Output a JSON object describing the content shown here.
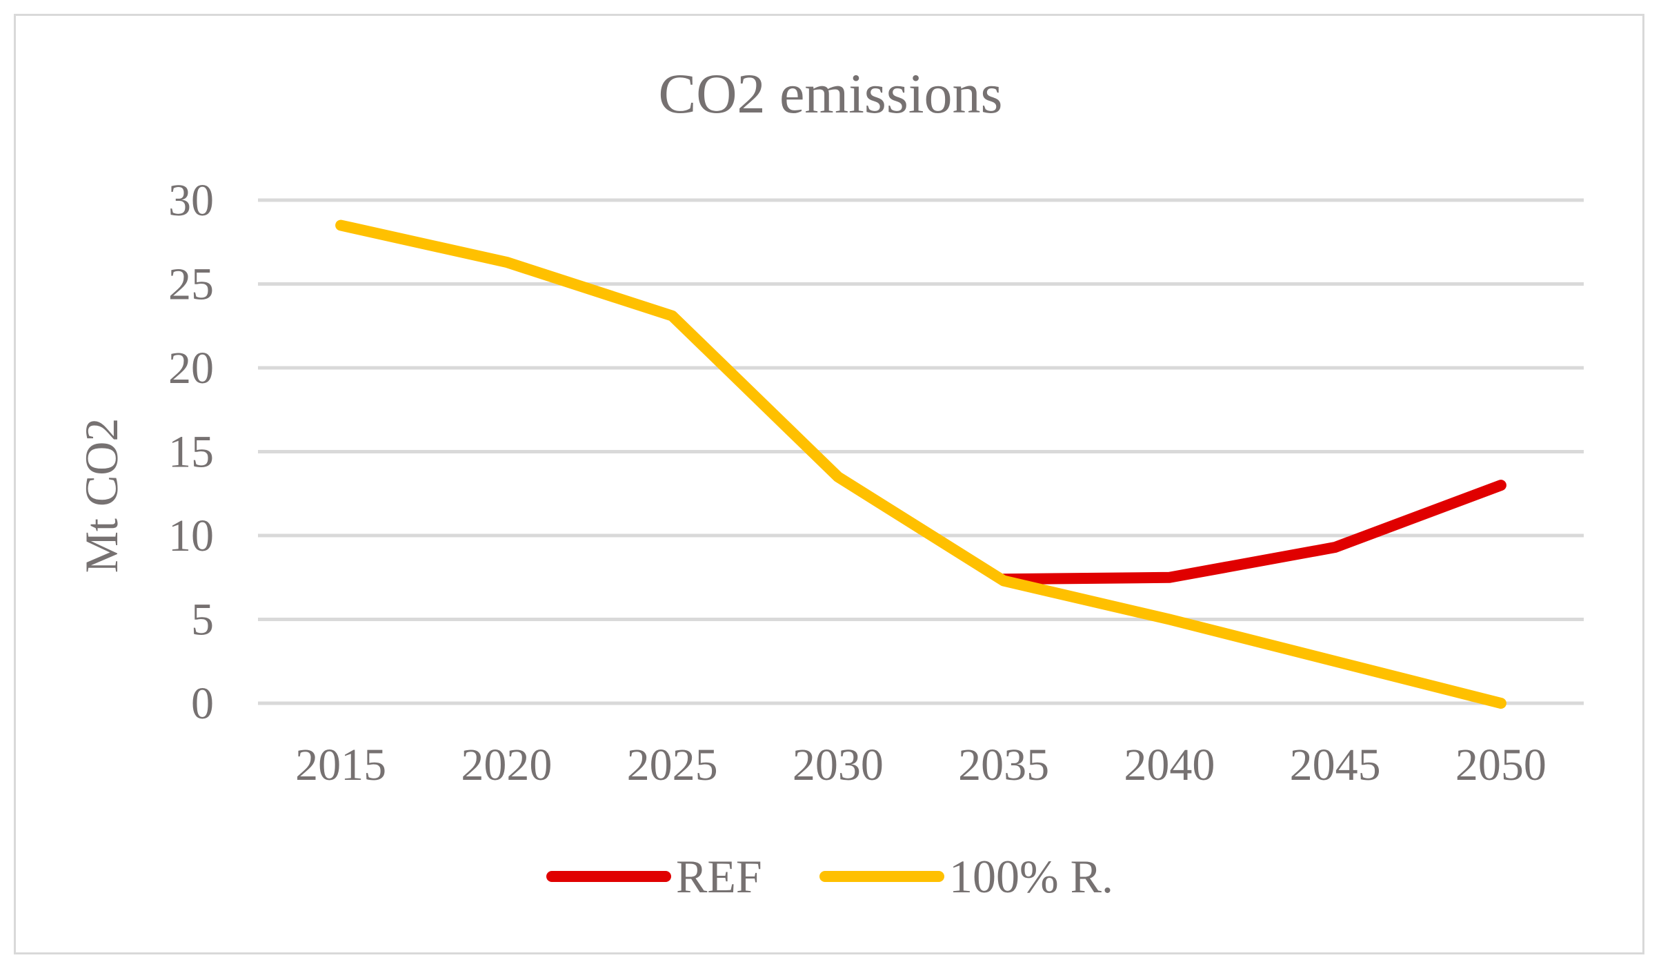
{
  "chart_data": {
    "type": "line",
    "title": "CO2 emissions",
    "xlabel": "",
    "ylabel": "Mt CO2",
    "categories": [
      "2015",
      "2020",
      "2025",
      "2030",
      "2035",
      "2040",
      "2045",
      "2050"
    ],
    "ylim": [
      0,
      30
    ],
    "yticks": [
      "0",
      "5",
      "10",
      "15",
      "20",
      "25",
      "30"
    ],
    "grid": true,
    "legend_position": "bottom",
    "series": [
      {
        "name": "REF",
        "color": "#e00000",
        "values": [
          null,
          null,
          null,
          null,
          7.4,
          7.5,
          9.3,
          13.0
        ]
      },
      {
        "name": "100% R.",
        "color": "#ffc000",
        "values": [
          28.5,
          26.3,
          23.1,
          13.5,
          7.3,
          5.0,
          2.5,
          0.0
        ]
      }
    ]
  }
}
